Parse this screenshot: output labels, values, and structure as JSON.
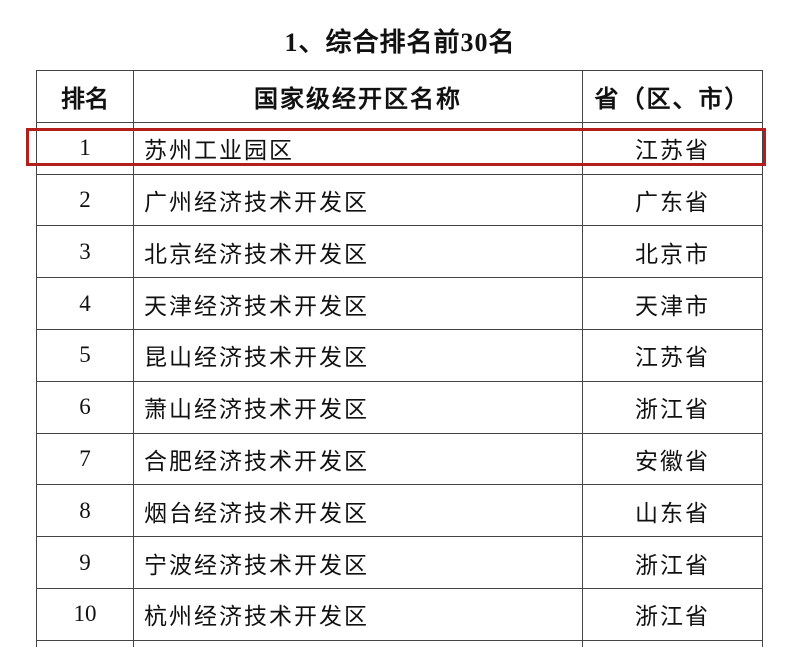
{
  "title": "1、综合排名前30名",
  "table": {
    "headers": [
      "排名",
      "国家级经开区名称",
      "省（区、市）"
    ],
    "rows": [
      {
        "rank": "1",
        "name": "苏州工业园区",
        "province": "江苏省"
      },
      {
        "rank": "2",
        "name": "广州经济技术开发区",
        "province": "广东省"
      },
      {
        "rank": "3",
        "name": "北京经济技术开发区",
        "province": "北京市"
      },
      {
        "rank": "4",
        "name": "天津经济技术开发区",
        "province": "天津市"
      },
      {
        "rank": "5",
        "name": "昆山经济技术开发区",
        "province": "江苏省"
      },
      {
        "rank": "6",
        "name": "萧山经济技术开发区",
        "province": "浙江省"
      },
      {
        "rank": "7",
        "name": "合肥经济技术开发区",
        "province": "安徽省"
      },
      {
        "rank": "8",
        "name": "烟台经济技术开发区",
        "province": "山东省"
      },
      {
        "rank": "9",
        "name": "宁波经济技术开发区",
        "province": "浙江省"
      },
      {
        "rank": "10",
        "name": "杭州经济技术开发区",
        "province": "浙江省"
      }
    ]
  },
  "highlight": {
    "row": "1",
    "color": "#b3201b"
  }
}
